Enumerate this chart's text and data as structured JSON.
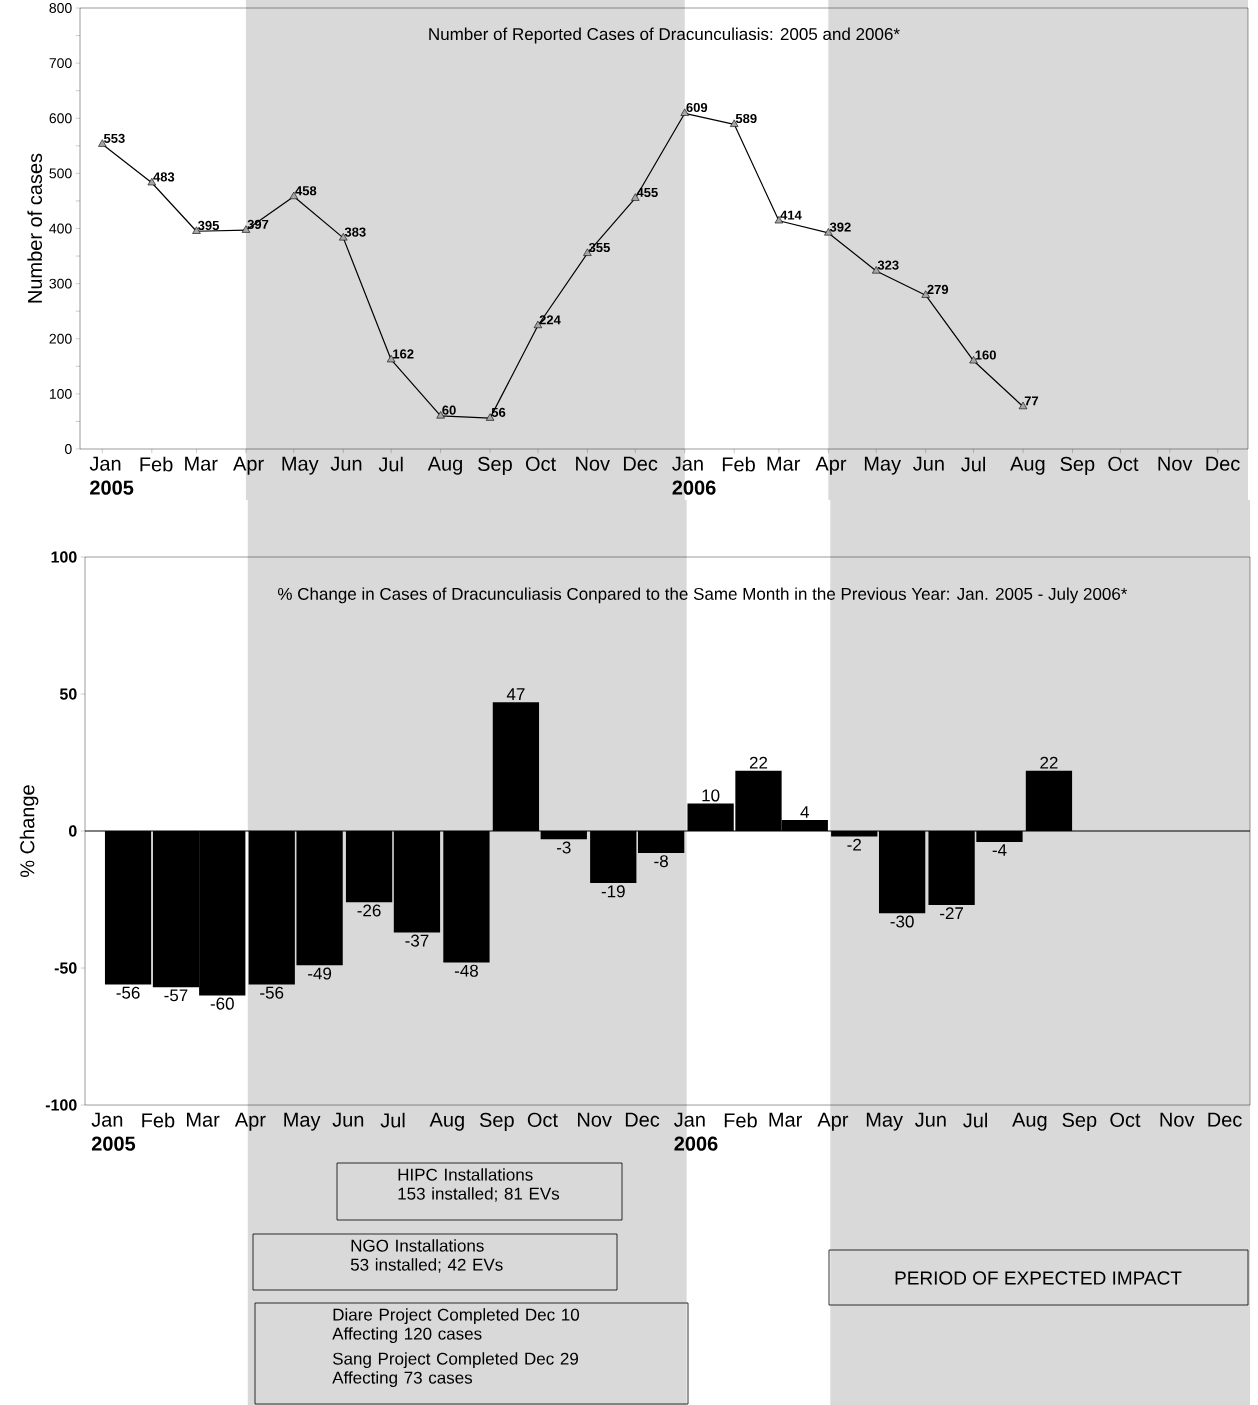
{
  "chart_data": [
    {
      "type": "line",
      "title": "Number of Reported Cases of Dracunculiasis: 2005 and 2006*",
      "ylabel": "Number of cases",
      "x": [
        "2005-01",
        "2005-02",
        "2005-03",
        "2005-04",
        "2005-05",
        "2005-06",
        "2005-07",
        "2005-08",
        "2005-09",
        "2005-10",
        "2005-11",
        "2005-12",
        "2006-01",
        "2006-02",
        "2006-03",
        "2006-04",
        "2006-05",
        "2006-06",
        "2006-07",
        "2006-08"
      ],
      "values": [
        553,
        483,
        395,
        397,
        458,
        383,
        162,
        60,
        56,
        224,
        355,
        455,
        609,
        589,
        414,
        392,
        323,
        279,
        160,
        77
      ],
      "color": "#000000",
      "marker": "triangle",
      "data_labels": true,
      "xlim": [
        "2004-12-18",
        "2006-12-20"
      ],
      "xticks": [
        {
          "value": "2005-01",
          "label": "Jan **2005**"
        },
        {
          "value": "2005-02",
          "label": "Feb"
        },
        {
          "value": "2005-03",
          "label": "Mar"
        },
        {
          "value": "2005-04",
          "label": "Apr"
        },
        {
          "value": "2005-05",
          "label": "May"
        },
        {
          "value": "2005-06",
          "label": "Jun"
        },
        {
          "value": "2005-07",
          "label": "Jul"
        },
        {
          "value": "2005-08",
          "label": "Aug"
        },
        {
          "value": "2005-09",
          "label": "Sep"
        },
        {
          "value": "2005-10",
          "label": "Oct"
        },
        {
          "value": "2005-11",
          "label": "Nov"
        },
        {
          "value": "2005-12",
          "label": "Dec"
        },
        {
          "value": "2006-01",
          "label": "Jan **2006**"
        },
        {
          "value": "2006-02",
          "label": "Feb"
        },
        {
          "value": "2006-03",
          "label": "Mar"
        },
        {
          "value": "2006-04",
          "label": "Apr"
        },
        {
          "value": "2006-05",
          "label": "May"
        },
        {
          "value": "2006-06",
          "label": "Jun"
        },
        {
          "value": "2006-07",
          "label": "Jul"
        },
        {
          "value": "2006-08",
          "label": "Aug"
        },
        {
          "value": "2006-09",
          "label": "Sep"
        },
        {
          "value": "2006-10",
          "label": "Oct"
        },
        {
          "value": "2006-11",
          "label": "Nov"
        },
        {
          "value": "2006-12",
          "label": "Dec"
        }
      ],
      "ylim": [
        0,
        800
      ],
      "yticks": [
        0,
        {
          "value": 50,
          "label": null
        },
        100,
        {
          "value": 150,
          "label": null
        },
        200,
        {
          "value": 250,
          "label": null
        },
        300,
        {
          "value": 350,
          "label": null
        },
        400,
        {
          "value": 450,
          "label": null
        },
        500,
        {
          "value": 550,
          "label": null
        },
        600,
        {
          "value": 650,
          "label": null
        },
        700,
        {
          "value": 750,
          "label": null
        },
        800
      ],
      "bands": [
        {
          "axis": "x",
          "from": "2005-04",
          "to": "2006-01",
          "color": "#d9d9d9"
        },
        {
          "axis": "x",
          "from": "2006-04",
          "to": "2006-12-20",
          "color": "#d9d9d9"
        }
      ]
    },
    {
      "type": "bar",
      "title": "% Change in Cases of Dracunculiasis Conpared to the Same Month in the Previous Year:  Jan. 2005 - July 2006*",
      "ylabel": "% Change",
      "x": [
        "2005-01-16",
        "2005-02-15",
        "2005-03-16",
        "2005-04-16",
        "2005-05-16",
        "2005-06-16",
        "2005-07-16",
        "2005-08-16",
        "2005-09-16",
        "2005-10-16",
        "2005-11-16",
        "2005-12-16",
        "2006-01-16",
        "2006-02-15",
        "2006-03-16",
        "2006-04-16",
        "2006-05-16",
        "2006-06-16",
        "2006-07-16",
        "2006-08-16"
      ],
      "values": [
        -56,
        -57,
        -60,
        -56,
        -49,
        -26,
        -37,
        -48,
        47,
        -3,
        -19,
        -8,
        10,
        22,
        4,
        -2,
        -30,
        -27,
        -4,
        22
      ],
      "color": "#000000",
      "data_labels": true,
      "xlim": [
        "2004-12-20",
        "2006-12-20"
      ],
      "xticks": [
        {
          "value": "2005-01",
          "label": "Jan **2005**"
        },
        {
          "value": "2005-02",
          "label": "Feb"
        },
        {
          "value": "2005-03",
          "label": "Mar"
        },
        {
          "value": "2005-04",
          "label": "Apr"
        },
        {
          "value": "2005-05",
          "label": "May"
        },
        {
          "value": "2005-06",
          "label": "Jun"
        },
        {
          "value": "2005-07",
          "label": "Jul"
        },
        {
          "value": "2005-08",
          "label": "Aug"
        },
        {
          "value": "2005-09",
          "label": "Sep"
        },
        {
          "value": "2005-10",
          "label": "Oct"
        },
        {
          "value": "2005-11",
          "label": "Nov"
        },
        {
          "value": "2005-12",
          "label": "Dec"
        },
        {
          "value": "2006-01",
          "label": "Jan **2006**"
        },
        {
          "value": "2006-02",
          "label": "Feb"
        },
        {
          "value": "2006-03",
          "label": "Mar"
        },
        {
          "value": "2006-04",
          "label": "Apr"
        },
        {
          "value": "2006-05",
          "label": "May"
        },
        {
          "value": "2006-06",
          "label": "Jun"
        },
        {
          "value": "2006-07",
          "label": "Jul"
        },
        {
          "value": "2006-08",
          "label": "Aug"
        },
        {
          "value": "2006-09",
          "label": "Sep"
        },
        {
          "value": "2006-10",
          "label": "Oct"
        },
        {
          "value": "2006-11",
          "label": "Nov"
        },
        {
          "value": "2006-12",
          "label": "Dec"
        }
      ],
      "ylim": [
        -100,
        100
      ],
      "yticks": [
        -100,
        -50,
        0,
        50,
        100
      ],
      "ref_lines": [
        {
          "axis": "y",
          "value": 0,
          "color": "#000000"
        }
      ],
      "bands": [
        {
          "axis": "x",
          "from": "2005-04",
          "to": "2006-01",
          "color": "#d9d9d9"
        },
        {
          "axis": "x",
          "from": "2006-04",
          "to": "2006-12-20",
          "color": "#d9d9d9"
        }
      ],
      "annotations": [
        "HIPC Installations 153 installed; 81 EVs",
        "NGO Installations 53 installed; 42 EVs",
        "Diare Project Completed Dec 10 Affecting 120 cases",
        "Sang Project Completed Dec 29 Affecting 73 cases",
        "PERIOD OF EXPECTED IMPACT"
      ]
    }
  ]
}
